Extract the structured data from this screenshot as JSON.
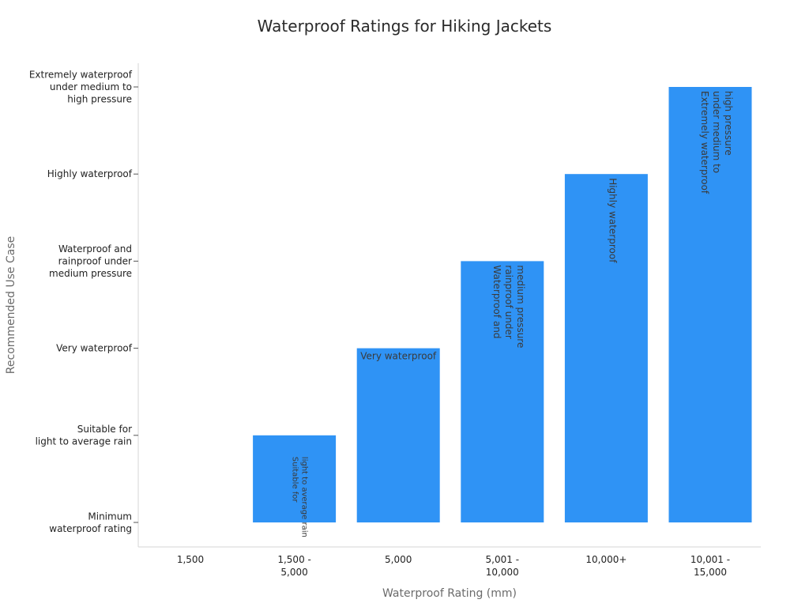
{
  "chart_data": {
    "type": "bar",
    "title": "Waterproof Ratings for Hiking Jackets",
    "xlabel": "Waterproof Rating (mm)",
    "ylabel": "Recommended Use Case",
    "categories": [
      "1,500",
      "1,500 - 5,000",
      "5,000",
      "5,001 - 10,000",
      "10,000+",
      "10,001 - 15,000"
    ],
    "y_categories": [
      "Minimum waterproof rating",
      "Suitable for light to average rain",
      "Very waterproof",
      "Waterproof and rainproof under medium pressure",
      "Highly waterproof",
      "Extremely waterproof under medium to high pressure"
    ],
    "y_tick_lines": [
      [
        "Minimum",
        "waterproof rating"
      ],
      [
        "Suitable for",
        "light to average rain"
      ],
      [
        "Very waterproof"
      ],
      [
        "Waterproof and",
        "rainproof under",
        "medium pressure"
      ],
      [
        "Highly waterproof"
      ],
      [
        "Extremely waterproof",
        "under medium to",
        "high pressure"
      ]
    ],
    "x_tick_lines": [
      [
        "1,500"
      ],
      [
        "1,500 -",
        "5,000"
      ],
      [
        "5,000"
      ],
      [
        "5,001 -",
        "10,000"
      ],
      [
        "10,000+"
      ],
      [
        "10,001 -",
        "15,000"
      ]
    ],
    "values": [
      0,
      1,
      2,
      3,
      4,
      5
    ],
    "bar_label_lines": [
      [],
      [
        "Suitable for",
        "light to average rain"
      ],
      [
        "Very waterproof"
      ],
      [
        "Waterproof and",
        "rainproof under",
        "medium pressure"
      ],
      [
        "Highly waterproof"
      ],
      [
        "Extremely waterproof",
        "under medium to",
        "high pressure"
      ]
    ],
    "bar_color": "#2f93f5",
    "grid": false,
    "legend": "none"
  }
}
